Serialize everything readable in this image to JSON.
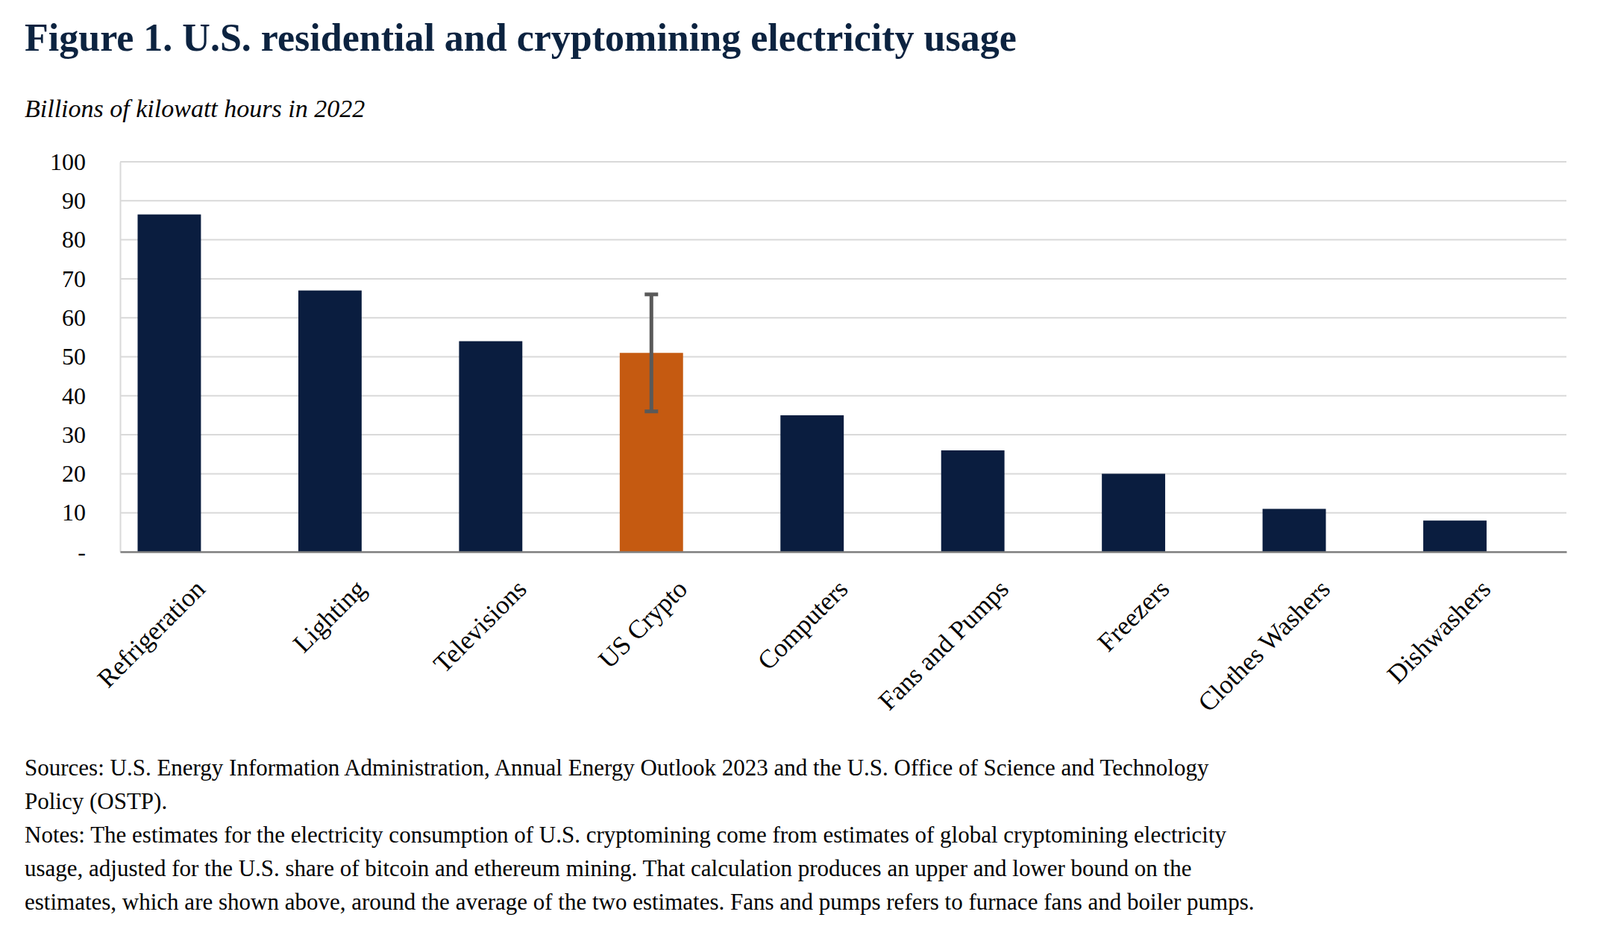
{
  "chart_data": {
    "type": "bar",
    "title": "Figure 1. U.S. residential and cryptomining electricity usage",
    "subtitle": "Billions of kilowatt hours in 2022",
    "categories": [
      "Refrigeration",
      "Lighting",
      "Televisions",
      "US Crypto",
      "Computers",
      "Fans and Pumps",
      "Freezers",
      "Clothes Washers",
      "Dishwashers"
    ],
    "values": [
      86.5,
      67,
      54,
      51,
      35,
      26,
      20,
      11,
      8
    ],
    "error_low": [
      null,
      null,
      null,
      36,
      null,
      null,
      null,
      null,
      null
    ],
    "error_high": [
      null,
      null,
      null,
      66,
      null,
      null,
      null,
      null,
      null
    ],
    "colors": [
      "#0a1d3f",
      "#0a1d3f",
      "#0a1d3f",
      "#c55a11",
      "#0a1d3f",
      "#0a1d3f",
      "#0a1d3f",
      "#0a1d3f",
      "#0a1d3f"
    ],
    "ylim": [
      0,
      100
    ],
    "yticks": [
      {
        "value": 0,
        "label": "-"
      },
      10,
      20,
      30,
      40,
      50,
      60,
      70,
      80,
      90,
      100
    ],
    "grid": true,
    "sources": [
      "Sources: U.S. Energy Information  Administration, Annual Energy Outlook 2023 and the U.S. Office of Science and Technology",
      "Policy (OSTP)."
    ],
    "notes": [
      "Notes: The estimates for the electricity consumption of U.S. cryptomining come from estimates of global cryptomining electricity",
      "usage, adjusted for the U.S. share of bitcoin and ethereum mining. That calculation produces an upper and lower bound on the",
      "estimates, which are shown above, around the average of the two estimates. Fans and pumps refers to furnace fans and boiler pumps."
    ]
  }
}
